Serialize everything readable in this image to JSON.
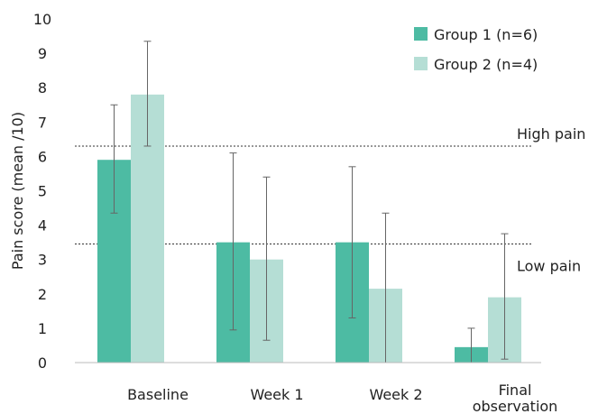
{
  "chart_data": {
    "type": "bar",
    "ylabel": "Pain score (mean /10)",
    "ylim": [
      0,
      10
    ],
    "yticks": [
      0,
      1,
      2,
      3,
      4,
      5,
      6,
      7,
      8,
      9,
      10
    ],
    "categories": [
      "Baseline",
      "Week 1",
      "Week 2",
      "Final observation"
    ],
    "category_lines": [
      [
        "Baseline"
      ],
      [
        "Week 1"
      ],
      [
        "Week 2"
      ],
      [
        "Final",
        "observation"
      ]
    ],
    "series": [
      {
        "name": "Group 1 (n=6)",
        "color": "#4dbba3",
        "values": [
          5.9,
          3.5,
          3.5,
          0.45
        ],
        "error_low": [
          4.35,
          0.95,
          1.3,
          0.0
        ],
        "error_high": [
          7.5,
          6.1,
          5.7,
          1.0
        ]
      },
      {
        "name": "Group 2 (n=4)",
        "color": "#b5ded5",
        "values": [
          7.8,
          3.0,
          2.15,
          1.9
        ],
        "error_low": [
          6.3,
          0.65,
          0.0,
          0.1
        ],
        "error_high": [
          9.35,
          5.4,
          4.35,
          3.75
        ]
      }
    ],
    "reference_lines": [
      {
        "label": "High pain",
        "value": 6.3
      },
      {
        "label": "Low pain",
        "value": 3.45
      }
    ],
    "legend_position": "top-right",
    "grid": false
  }
}
